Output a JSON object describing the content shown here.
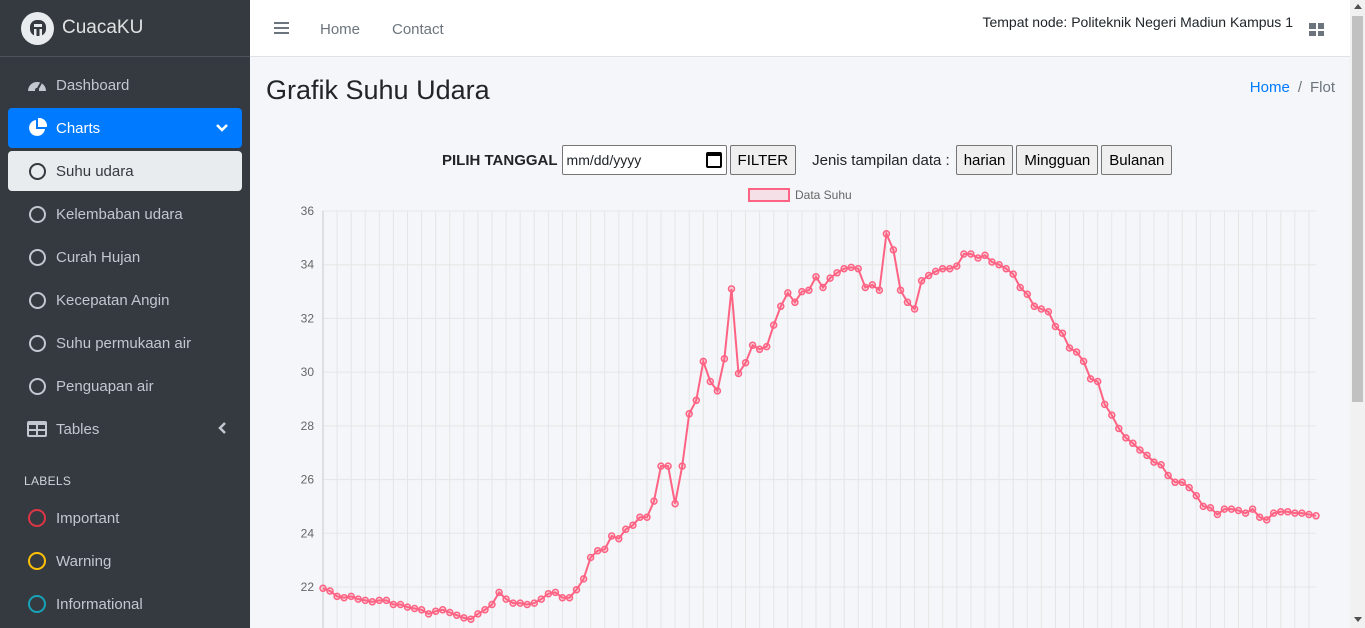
{
  "brand": {
    "name": "CuacaKU"
  },
  "sidebar": {
    "items": [
      {
        "label": "Dashboard",
        "icon": "tachometer-icon"
      },
      {
        "label": "Charts",
        "icon": "pie-chart-icon"
      },
      {
        "label": "Suhu udara",
        "icon": "circle-icon"
      },
      {
        "label": "Kelembaban udara",
        "icon": "circle-icon"
      },
      {
        "label": "Curah Hujan",
        "icon": "circle-icon"
      },
      {
        "label": "Kecepatan Angin",
        "icon": "circle-icon"
      },
      {
        "label": "Suhu permukaan air",
        "icon": "circle-icon"
      },
      {
        "label": "Penguapan air",
        "icon": "circle-icon"
      },
      {
        "label": "Tables",
        "icon": "table-icon"
      }
    ],
    "labels_header": "LABELS",
    "labels": [
      {
        "label": "Important",
        "color": "#dc3545"
      },
      {
        "label": "Warning",
        "color": "#ffc107"
      },
      {
        "label": "Informational",
        "color": "#17a2b8"
      }
    ]
  },
  "topbar": {
    "links": [
      "Home",
      "Contact"
    ],
    "node_text": "Tempat node: Politeknik Negeri Madiun Kampus 1"
  },
  "page": {
    "title": "Grafik Suhu Udara",
    "breadcrumb": {
      "home": "Home",
      "current": "Flot"
    }
  },
  "filter": {
    "label": "PILIH TANGGAL",
    "date_placeholder": "mm/dd/yyyy",
    "filter_button": "FILTER",
    "jenis_label": "Jenis tampilan data :",
    "buttons": [
      "harian",
      "Mingguan",
      "Bulanan"
    ]
  },
  "colors": {
    "accent": "#007bff",
    "sidebar_bg": "#343a40",
    "series": "#ff6384"
  },
  "chart_data": {
    "type": "line",
    "legend": [
      "Data Suhu"
    ],
    "y_ticks": [
      "36",
      "34",
      "32",
      "30",
      "28",
      "26",
      "24",
      "22"
    ],
    "ylim": [
      21.0,
      36
    ],
    "grid": true,
    "series": [
      {
        "name": "Data Suhu",
        "values": [
          21.95,
          21.85,
          21.65,
          21.6,
          21.65,
          21.55,
          21.5,
          21.45,
          21.5,
          21.5,
          21.35,
          21.35,
          21.25,
          21.2,
          21.15,
          21.0,
          21.1,
          21.15,
          21.05,
          20.95,
          20.85,
          20.8,
          21.0,
          21.15,
          21.35,
          21.8,
          21.55,
          21.4,
          21.4,
          21.35,
          21.4,
          21.55,
          21.75,
          21.8,
          21.6,
          21.6,
          21.9,
          22.3,
          23.1,
          23.35,
          23.4,
          23.9,
          23.8,
          24.15,
          24.3,
          24.6,
          24.6,
          25.2,
          26.5,
          26.5,
          25.1,
          26.5,
          28.45,
          28.95,
          30.4,
          29.65,
          29.3,
          30.5,
          33.1,
          29.95,
          30.35,
          31.0,
          30.85,
          30.95,
          31.75,
          32.45,
          32.95,
          32.6,
          33.0,
          33.05,
          33.55,
          33.15,
          33.5,
          33.7,
          33.85,
          33.9,
          33.85,
          33.15,
          33.25,
          33.05,
          35.15,
          34.55,
          33.05,
          32.6,
          32.35,
          33.4,
          33.6,
          33.75,
          33.85,
          33.85,
          33.95,
          34.4,
          34.4,
          34.25,
          34.35,
          34.1,
          34.0,
          33.85,
          33.65,
          33.15,
          32.9,
          32.45,
          32.35,
          32.25,
          31.7,
          31.45,
          30.9,
          30.75,
          30.4,
          29.75,
          29.65,
          28.8,
          28.4,
          27.9,
          27.55,
          27.35,
          27.1,
          26.9,
          26.65,
          26.55,
          26.15,
          25.9,
          25.9,
          25.7,
          25.4,
          25.0,
          24.95,
          24.7,
          24.9,
          24.9,
          24.85,
          24.75,
          24.9,
          24.6,
          24.5,
          24.75,
          24.8,
          24.8,
          24.75,
          24.75,
          24.7,
          24.65
        ]
      }
    ]
  }
}
